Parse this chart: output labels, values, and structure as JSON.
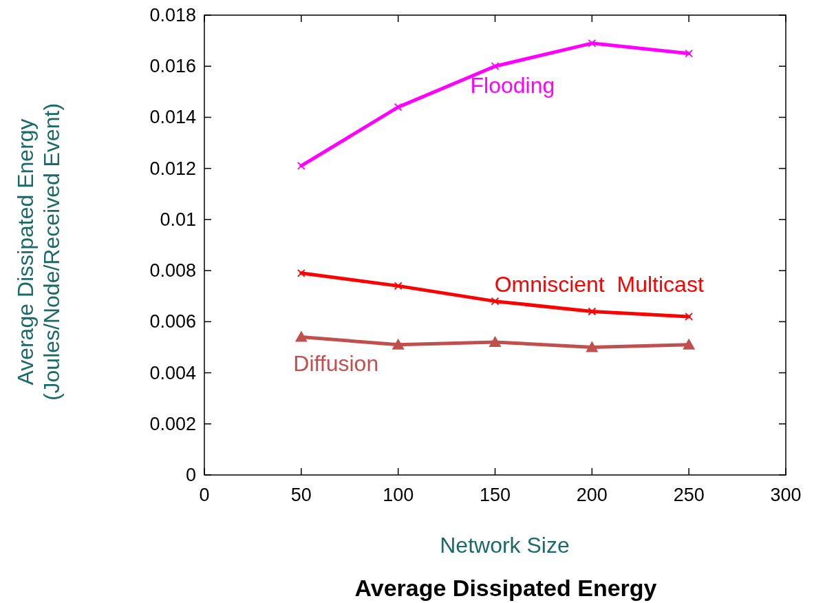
{
  "chart_data": {
    "type": "line",
    "title": "Average Dissipated Energy",
    "xlabel": "Network Size",
    "ylabel": "Average Dissipated Energy\n(Joules/Node/Received Event)",
    "x": [
      50,
      100,
      150,
      200,
      250
    ],
    "series": [
      {
        "name": "Flooding",
        "color": "#ff00ff",
        "marker": "cross",
        "values": [
          0.0121,
          0.0144,
          0.016,
          0.0169,
          0.0165
        ]
      },
      {
        "name": "Omniscient  Multicast",
        "color": "#ff0000",
        "marker": "cross",
        "values": [
          0.0079,
          0.0074,
          0.0068,
          0.0064,
          0.0062
        ]
      },
      {
        "name": "Diffusion",
        "color": "#c0504d",
        "marker": "triangle",
        "values": [
          0.0054,
          0.0051,
          0.0052,
          0.005,
          0.0051
        ]
      }
    ],
    "xlim": [
      0,
      300
    ],
    "xticks": [
      0,
      50,
      100,
      150,
      200,
      250,
      300
    ],
    "ylim": [
      0,
      0.018
    ],
    "yticks": [
      0,
      0.002,
      0.004,
      0.006,
      0.008,
      0.01,
      0.012,
      0.014,
      0.016,
      0.018
    ],
    "grid": false,
    "legend": false,
    "line_style": "solid"
  }
}
